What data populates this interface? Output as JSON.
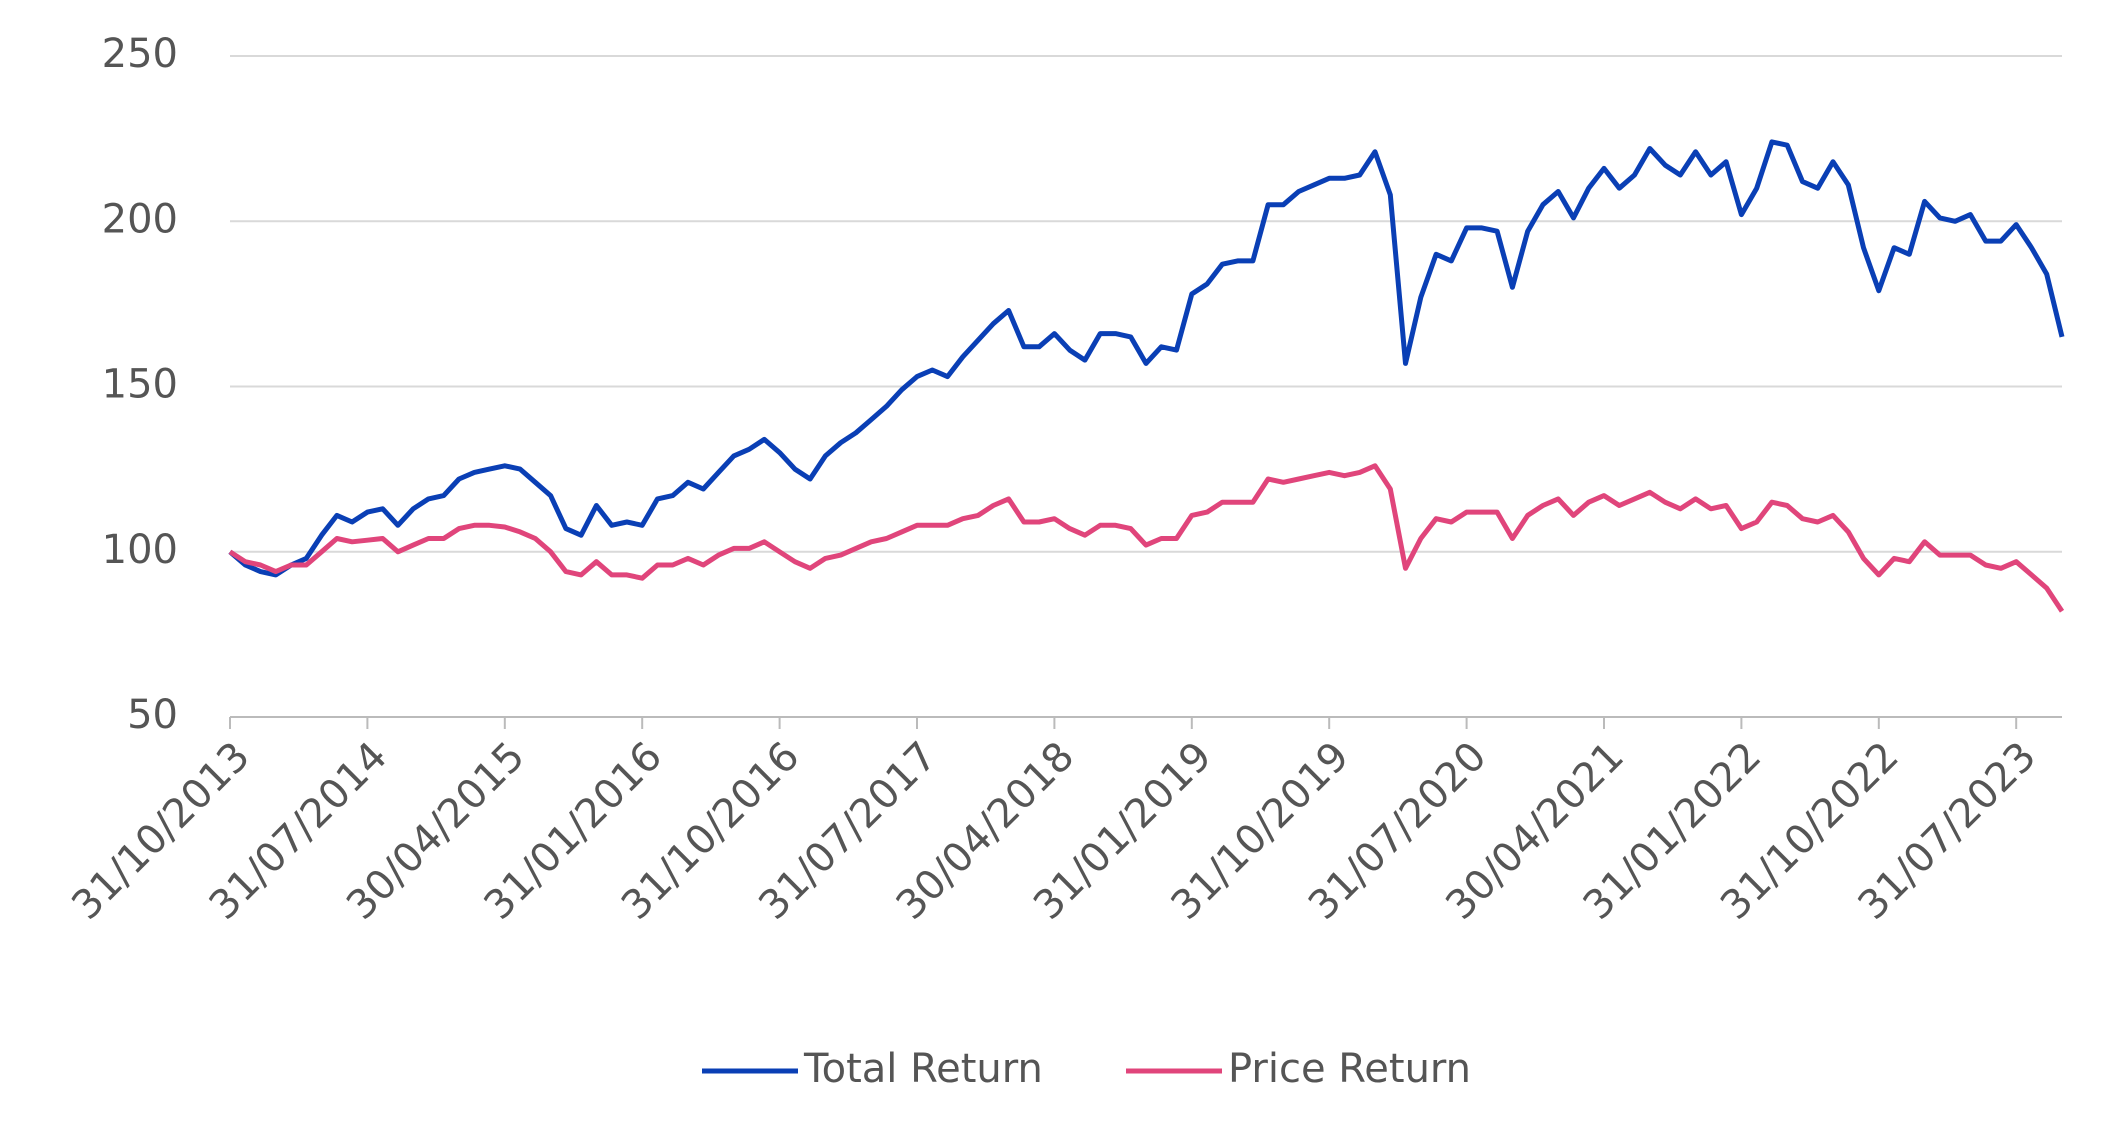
{
  "chart_data": {
    "type": "line",
    "categories": [
      "31/10/2013",
      null,
      null,
      null,
      null,
      null,
      null,
      null,
      null,
      "31/07/2014",
      null,
      null,
      null,
      null,
      null,
      null,
      null,
      null,
      "30/04/2015",
      null,
      null,
      null,
      null,
      null,
      null,
      null,
      null,
      "31/01/2016",
      null,
      null,
      null,
      null,
      null,
      null,
      null,
      null,
      "31/10/2016",
      null,
      null,
      null,
      null,
      null,
      null,
      null,
      null,
      "31/07/2017",
      null,
      null,
      null,
      null,
      null,
      null,
      null,
      null,
      "30/04/2018",
      null,
      null,
      null,
      null,
      null,
      null,
      null,
      null,
      "31/01/2019",
      null,
      null,
      null,
      null,
      null,
      null,
      null,
      null,
      "31/10/2019",
      null,
      null,
      null,
      null,
      null,
      null,
      null,
      null,
      "31/07/2020",
      null,
      null,
      null,
      null,
      null,
      null,
      null,
      null,
      "30/04/2021",
      null,
      null,
      null,
      null,
      null,
      null,
      null,
      null,
      "31/01/2022",
      null,
      null,
      null,
      null,
      null,
      null,
      null,
      null,
      "31/10/2022",
      null,
      null,
      null,
      null,
      null,
      null,
      null,
      null,
      "31/07/2023",
      null,
      null,
      null
    ],
    "series": [
      {
        "name": "Total Return",
        "color": "#0a3fb5",
        "values": [
          100,
          96,
          94,
          93,
          96,
          98,
          105,
          111,
          109,
          112,
          113,
          108,
          113,
          116,
          117,
          122,
          124,
          125,
          126,
          125,
          121,
          117,
          107,
          105,
          114,
          108,
          109,
          108,
          116,
          117,
          121,
          119,
          124,
          129,
          131,
          134,
          130,
          125,
          122,
          129,
          133,
          136,
          140,
          144,
          149,
          153,
          155,
          153,
          159,
          164,
          169,
          173,
          162,
          162,
          166,
          161,
          158,
          166,
          166,
          165,
          157,
          162,
          161,
          178,
          181,
          187,
          188,
          188,
          205,
          205,
          209,
          211,
          213,
          213,
          214,
          221,
          208,
          157,
          177,
          190,
          188,
          198,
          198,
          197,
          180,
          197,
          205,
          209,
          201,
          210,
          216,
          210,
          214,
          222,
          217,
          214,
          221,
          214,
          218,
          202,
          210,
          224,
          223,
          212,
          210,
          218,
          211,
          192,
          179,
          192,
          190,
          206,
          201,
          200,
          202,
          194,
          194,
          199,
          192,
          184,
          165
        ]
      },
      {
        "name": "Price Return",
        "color": "#e0457b",
        "values": [
          100,
          97,
          96,
          94,
          96,
          96,
          100,
          104,
          103,
          103.5,
          104,
          100,
          102,
          104,
          104,
          107,
          108,
          108,
          107.5,
          106,
          104,
          100,
          94,
          93,
          97,
          93,
          93,
          92,
          96,
          96,
          98,
          96,
          99,
          101,
          101,
          103,
          100,
          97,
          95,
          98,
          99,
          101,
          103,
          104,
          106,
          108,
          108,
          108,
          110,
          111,
          114,
          116,
          109,
          109,
          110,
          107,
          105,
          108,
          108,
          107,
          102,
          104,
          104,
          111,
          112,
          115,
          115,
          115,
          122,
          121,
          122,
          123,
          124,
          123,
          124,
          126,
          119,
          95,
          104,
          110,
          109,
          112,
          112,
          112,
          104,
          111,
          114,
          116,
          111,
          115,
          117,
          114,
          116,
          118,
          115,
          113,
          116,
          113,
          114,
          107,
          109,
          115,
          114,
          110,
          109,
          111,
          106,
          98,
          93,
          98,
          97,
          103,
          99,
          99,
          99,
          96,
          95,
          97,
          93,
          89,
          82
        ]
      }
    ],
    "ylim": [
      50,
      250
    ],
    "yticks": [
      50,
      100,
      150,
      200,
      250
    ],
    "grid": true,
    "legend": "bottom"
  }
}
